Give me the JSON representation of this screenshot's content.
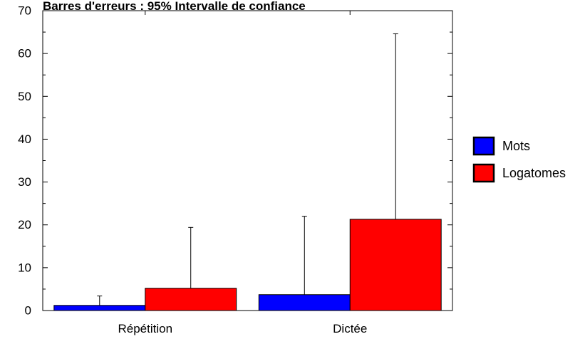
{
  "chart_data": {
    "type": "bar",
    "title": "Barres d'erreurs : 95% Intervalle de confiance",
    "categories": [
      "Répétition",
      "Dictée"
    ],
    "series": [
      {
        "name": "Mots",
        "color": "#0000ff",
        "values": [
          1.2,
          3.7
        ],
        "error_upper": [
          3.4,
          22.0
        ]
      },
      {
        "name": "Logatomes",
        "color": "#ff0000",
        "values": [
          5.2,
          21.3
        ],
        "error_upper": [
          19.4,
          64.6
        ]
      }
    ],
    "ylim": [
      0,
      70
    ],
    "yticks": [
      0,
      10,
      20,
      30,
      40,
      50,
      60,
      70
    ],
    "legend_position": "right",
    "grid": false
  }
}
